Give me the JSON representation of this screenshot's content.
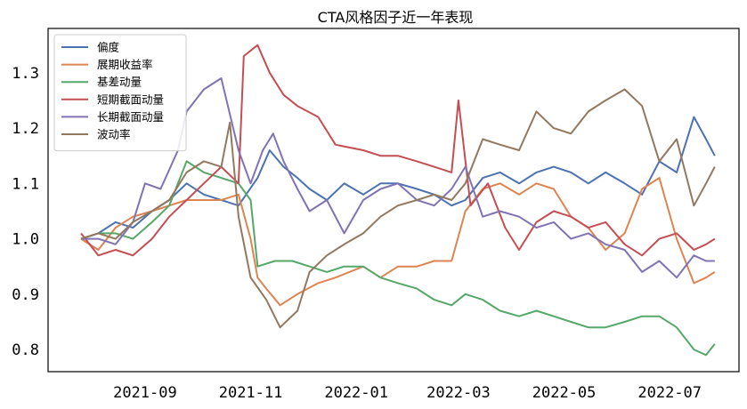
{
  "chart_data": {
    "type": "line",
    "title": "CTA风格因子近一年表现",
    "xlabel": "",
    "ylabel": "",
    "x_ticks": [
      "2021-09",
      "2021-11",
      "2022-01",
      "2022-03",
      "2022-05",
      "2022-07"
    ],
    "y_ticks": [
      "0.8",
      "0.9",
      "1.0",
      "1.1",
      "1.2",
      "1.3"
    ],
    "xlim": [
      "2021-07-07",
      "2022-08-10"
    ],
    "ylim": [
      0.76,
      1.38
    ],
    "grid": false,
    "legend_position": "top-left",
    "series": [
      {
        "name": "偏度",
        "color": "#4c72b0",
        "points": [
          [
            "2021-07-26",
            1.0
          ],
          [
            "2021-08-05",
            1.01
          ],
          [
            "2021-08-15",
            1.03
          ],
          [
            "2021-08-25",
            1.02
          ],
          [
            "2021-09-05",
            1.05
          ],
          [
            "2021-09-15",
            1.07
          ],
          [
            "2021-09-25",
            1.1
          ],
          [
            "2021-10-05",
            1.08
          ],
          [
            "2021-10-15",
            1.07
          ],
          [
            "2021-10-25",
            1.06
          ],
          [
            "2021-11-05",
            1.11
          ],
          [
            "2021-11-12",
            1.16
          ],
          [
            "2021-11-20",
            1.13
          ],
          [
            "2021-11-28",
            1.11
          ],
          [
            "2021-12-05",
            1.09
          ],
          [
            "2021-12-15",
            1.07
          ],
          [
            "2021-12-25",
            1.1
          ],
          [
            "2022-01-05",
            1.08
          ],
          [
            "2022-01-15",
            1.1
          ],
          [
            "2022-01-25",
            1.1
          ],
          [
            "2022-02-05",
            1.09
          ],
          [
            "2022-02-15",
            1.08
          ],
          [
            "2022-02-25",
            1.06
          ],
          [
            "2022-03-05",
            1.07
          ],
          [
            "2022-03-15",
            1.11
          ],
          [
            "2022-03-25",
            1.12
          ],
          [
            "2022-04-05",
            1.1
          ],
          [
            "2022-04-15",
            1.12
          ],
          [
            "2022-04-25",
            1.13
          ],
          [
            "2022-05-05",
            1.12
          ],
          [
            "2022-05-15",
            1.1
          ],
          [
            "2022-05-25",
            1.12
          ],
          [
            "2022-06-05",
            1.1
          ],
          [
            "2022-06-15",
            1.08
          ],
          [
            "2022-06-25",
            1.14
          ],
          [
            "2022-07-05",
            1.12
          ],
          [
            "2022-07-15",
            1.22
          ],
          [
            "2022-07-22",
            1.18
          ],
          [
            "2022-07-27",
            1.15
          ]
        ]
      },
      {
        "name": "展期收益率",
        "color": "#dd8452",
        "points": [
          [
            "2021-07-26",
            1.0
          ],
          [
            "2021-08-05",
            0.98
          ],
          [
            "2021-08-15",
            1.02
          ],
          [
            "2021-08-25",
            1.04
          ],
          [
            "2021-09-05",
            1.05
          ],
          [
            "2021-09-15",
            1.06
          ],
          [
            "2021-09-25",
            1.07
          ],
          [
            "2021-10-05",
            1.07
          ],
          [
            "2021-10-15",
            1.07
          ],
          [
            "2021-10-25",
            1.08
          ],
          [
            "2021-11-01",
            1.0
          ],
          [
            "2021-11-05",
            0.93
          ],
          [
            "2021-11-10",
            0.91
          ],
          [
            "2021-11-18",
            0.88
          ],
          [
            "2021-11-28",
            0.9
          ],
          [
            "2021-12-10",
            0.92
          ],
          [
            "2021-12-20",
            0.93
          ],
          [
            "2022-01-05",
            0.95
          ],
          [
            "2022-01-15",
            0.93
          ],
          [
            "2022-01-25",
            0.95
          ],
          [
            "2022-02-05",
            0.95
          ],
          [
            "2022-02-15",
            0.96
          ],
          [
            "2022-02-25",
            0.96
          ],
          [
            "2022-03-05",
            1.05
          ],
          [
            "2022-03-15",
            1.09
          ],
          [
            "2022-03-25",
            1.1
          ],
          [
            "2022-04-05",
            1.08
          ],
          [
            "2022-04-15",
            1.1
          ],
          [
            "2022-04-25",
            1.09
          ],
          [
            "2022-05-05",
            1.04
          ],
          [
            "2022-05-15",
            1.02
          ],
          [
            "2022-05-25",
            0.98
          ],
          [
            "2022-06-05",
            1.01
          ],
          [
            "2022-06-15",
            1.09
          ],
          [
            "2022-06-25",
            1.11
          ],
          [
            "2022-07-05",
            1.0
          ],
          [
            "2022-07-15",
            0.92
          ],
          [
            "2022-07-22",
            0.93
          ],
          [
            "2022-07-27",
            0.94
          ]
        ]
      },
      {
        "name": "基差动量",
        "color": "#55a868",
        "points": [
          [
            "2021-07-26",
            1.0
          ],
          [
            "2021-08-05",
            1.01
          ],
          [
            "2021-08-15",
            1.01
          ],
          [
            "2021-08-25",
            1.0
          ],
          [
            "2021-09-05",
            1.03
          ],
          [
            "2021-09-15",
            1.06
          ],
          [
            "2021-09-25",
            1.14
          ],
          [
            "2021-10-05",
            1.12
          ],
          [
            "2021-10-15",
            1.11
          ],
          [
            "2021-10-25",
            1.1
          ],
          [
            "2021-11-01",
            1.07
          ],
          [
            "2021-11-05",
            0.95
          ],
          [
            "2021-11-15",
            0.96
          ],
          [
            "2021-11-25",
            0.96
          ],
          [
            "2021-12-05",
            0.95
          ],
          [
            "2021-12-15",
            0.94
          ],
          [
            "2021-12-25",
            0.95
          ],
          [
            "2022-01-05",
            0.95
          ],
          [
            "2022-01-15",
            0.93
          ],
          [
            "2022-01-25",
            0.92
          ],
          [
            "2022-02-05",
            0.91
          ],
          [
            "2022-02-15",
            0.89
          ],
          [
            "2022-02-25",
            0.88
          ],
          [
            "2022-03-05",
            0.9
          ],
          [
            "2022-03-15",
            0.89
          ],
          [
            "2022-03-25",
            0.87
          ],
          [
            "2022-04-05",
            0.86
          ],
          [
            "2022-04-15",
            0.87
          ],
          [
            "2022-04-25",
            0.86
          ],
          [
            "2022-05-05",
            0.85
          ],
          [
            "2022-05-15",
            0.84
          ],
          [
            "2022-05-25",
            0.84
          ],
          [
            "2022-06-05",
            0.85
          ],
          [
            "2022-06-15",
            0.86
          ],
          [
            "2022-06-25",
            0.86
          ],
          [
            "2022-07-05",
            0.84
          ],
          [
            "2022-07-15",
            0.8
          ],
          [
            "2022-07-22",
            0.79
          ],
          [
            "2022-07-27",
            0.81
          ]
        ]
      },
      {
        "name": "短期截面动量",
        "color": "#c44e52",
        "points": [
          [
            "2021-07-26",
            1.01
          ],
          [
            "2021-08-05",
            0.97
          ],
          [
            "2021-08-15",
            0.98
          ],
          [
            "2021-08-25",
            0.97
          ],
          [
            "2021-09-05",
            1.0
          ],
          [
            "2021-09-15",
            1.04
          ],
          [
            "2021-09-25",
            1.07
          ],
          [
            "2021-10-05",
            1.1
          ],
          [
            "2021-10-15",
            1.13
          ],
          [
            "2021-10-25",
            1.1
          ],
          [
            "2021-10-28",
            1.33
          ],
          [
            "2021-11-05",
            1.35
          ],
          [
            "2021-11-12",
            1.3
          ],
          [
            "2021-11-20",
            1.26
          ],
          [
            "2021-11-28",
            1.24
          ],
          [
            "2021-12-10",
            1.22
          ],
          [
            "2021-12-20",
            1.17
          ],
          [
            "2022-01-05",
            1.16
          ],
          [
            "2022-01-15",
            1.15
          ],
          [
            "2022-01-25",
            1.15
          ],
          [
            "2022-02-05",
            1.14
          ],
          [
            "2022-02-15",
            1.13
          ],
          [
            "2022-02-25",
            1.12
          ],
          [
            "2022-03-01",
            1.25
          ],
          [
            "2022-03-08",
            1.06
          ],
          [
            "2022-03-18",
            1.1
          ],
          [
            "2022-03-28",
            1.02
          ],
          [
            "2022-04-05",
            0.98
          ],
          [
            "2022-04-15",
            1.03
          ],
          [
            "2022-04-25",
            1.05
          ],
          [
            "2022-05-05",
            1.04
          ],
          [
            "2022-05-15",
            1.02
          ],
          [
            "2022-05-25",
            1.03
          ],
          [
            "2022-06-05",
            0.99
          ],
          [
            "2022-06-15",
            0.97
          ],
          [
            "2022-06-25",
            1.0
          ],
          [
            "2022-07-05",
            1.01
          ],
          [
            "2022-07-15",
            0.98
          ],
          [
            "2022-07-22",
            0.99
          ],
          [
            "2022-07-27",
            1.0
          ]
        ]
      },
      {
        "name": "长期截面动量",
        "color": "#8172b3",
        "points": [
          [
            "2021-07-26",
            1.0
          ],
          [
            "2021-08-05",
            1.0
          ],
          [
            "2021-08-15",
            0.99
          ],
          [
            "2021-08-25",
            1.03
          ],
          [
            "2021-09-01",
            1.1
          ],
          [
            "2021-09-10",
            1.09
          ],
          [
            "2021-09-20",
            1.16
          ],
          [
            "2021-09-25",
            1.23
          ],
          [
            "2021-10-05",
            1.27
          ],
          [
            "2021-10-15",
            1.29
          ],
          [
            "2021-10-25",
            1.16
          ],
          [
            "2021-11-01",
            1.1
          ],
          [
            "2021-11-08",
            1.16
          ],
          [
            "2021-11-14",
            1.19
          ],
          [
            "2021-11-20",
            1.14
          ],
          [
            "2021-11-28",
            1.09
          ],
          [
            "2021-12-05",
            1.05
          ],
          [
            "2021-12-15",
            1.07
          ],
          [
            "2021-12-25",
            1.01
          ],
          [
            "2022-01-05",
            1.07
          ],
          [
            "2022-01-15",
            1.09
          ],
          [
            "2022-01-25",
            1.1
          ],
          [
            "2022-02-05",
            1.07
          ],
          [
            "2022-02-15",
            1.06
          ],
          [
            "2022-02-25",
            1.09
          ],
          [
            "2022-03-05",
            1.13
          ],
          [
            "2022-03-15",
            1.04
          ],
          [
            "2022-03-25",
            1.05
          ],
          [
            "2022-04-05",
            1.04
          ],
          [
            "2022-04-15",
            1.02
          ],
          [
            "2022-04-25",
            1.03
          ],
          [
            "2022-05-05",
            1.0
          ],
          [
            "2022-05-15",
            1.01
          ],
          [
            "2022-05-25",
            0.99
          ],
          [
            "2022-06-05",
            0.98
          ],
          [
            "2022-06-15",
            0.94
          ],
          [
            "2022-06-25",
            0.96
          ],
          [
            "2022-07-05",
            0.93
          ],
          [
            "2022-07-15",
            0.97
          ],
          [
            "2022-07-22",
            0.96
          ],
          [
            "2022-07-27",
            0.96
          ]
        ]
      },
      {
        "name": "波动率",
        "color": "#937860",
        "points": [
          [
            "2021-07-26",
            1.0
          ],
          [
            "2021-08-05",
            1.01
          ],
          [
            "2021-08-15",
            1.0
          ],
          [
            "2021-08-25",
            1.03
          ],
          [
            "2021-09-05",
            1.05
          ],
          [
            "2021-09-15",
            1.07
          ],
          [
            "2021-09-25",
            1.12
          ],
          [
            "2021-10-05",
            1.14
          ],
          [
            "2021-10-15",
            1.13
          ],
          [
            "2021-10-20",
            1.21
          ],
          [
            "2021-10-25",
            1.04
          ],
          [
            "2021-11-01",
            0.93
          ],
          [
            "2021-11-10",
            0.89
          ],
          [
            "2021-11-18",
            0.84
          ],
          [
            "2021-11-28",
            0.87
          ],
          [
            "2021-12-05",
            0.94
          ],
          [
            "2021-12-15",
            0.97
          ],
          [
            "2021-12-25",
            0.99
          ],
          [
            "2022-01-05",
            1.01
          ],
          [
            "2022-01-15",
            1.04
          ],
          [
            "2022-01-25",
            1.06
          ],
          [
            "2022-02-05",
            1.07
          ],
          [
            "2022-02-15",
            1.08
          ],
          [
            "2022-02-25",
            1.07
          ],
          [
            "2022-03-05",
            1.1
          ],
          [
            "2022-03-15",
            1.18
          ],
          [
            "2022-03-25",
            1.17
          ],
          [
            "2022-04-05",
            1.16
          ],
          [
            "2022-04-15",
            1.23
          ],
          [
            "2022-04-25",
            1.2
          ],
          [
            "2022-05-05",
            1.19
          ],
          [
            "2022-05-15",
            1.23
          ],
          [
            "2022-05-25",
            1.25
          ],
          [
            "2022-06-05",
            1.27
          ],
          [
            "2022-06-15",
            1.24
          ],
          [
            "2022-06-25",
            1.14
          ],
          [
            "2022-07-05",
            1.18
          ],
          [
            "2022-07-15",
            1.06
          ],
          [
            "2022-07-22",
            1.1
          ],
          [
            "2022-07-27",
            1.13
          ]
        ]
      }
    ]
  }
}
